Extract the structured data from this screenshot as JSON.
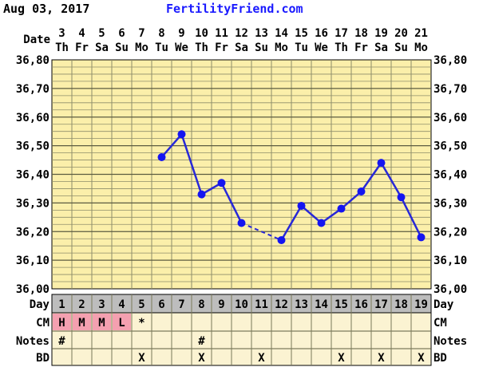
{
  "header": {
    "date": "Aug 03, 2017",
    "site": "FertilityFriend.com"
  },
  "row_labels": {
    "date": "Date",
    "day": "Day",
    "cm": "CM",
    "notes": "Notes",
    "bd": "BD"
  },
  "colors": {
    "chart_bg": "#fbefaa",
    "grid": "#8e8e6a",
    "line": "#2828d8",
    "point": "#1515f0",
    "site_link": "#1a1aff",
    "day_row_bg": "#bdbdbd",
    "cm_fill": "#f4a0b0"
  },
  "chart_data": {
    "type": "line",
    "ylim": [
      36.0,
      36.8
    ],
    "yticks": [
      "36,00",
      "36,10",
      "36,20",
      "36,30",
      "36,40",
      "36,50",
      "36,60",
      "36,70",
      "36,80"
    ],
    "dates": [
      "3",
      "4",
      "5",
      "6",
      "7",
      "8",
      "9",
      "10",
      "11",
      "12",
      "13",
      "14",
      "15",
      "16",
      "17",
      "18",
      "19",
      "20",
      "21"
    ],
    "weekdays": [
      "Th",
      "Fr",
      "Sa",
      "Su",
      "Mo",
      "Tu",
      "We",
      "Th",
      "Fr",
      "Sa",
      "Su",
      "Mo",
      "Tu",
      "We",
      "Th",
      "Fr",
      "Sa",
      "Su",
      "Mo"
    ],
    "cycle_days": [
      "1",
      "2",
      "3",
      "4",
      "5",
      "6",
      "7",
      "8",
      "9",
      "10",
      "11",
      "12",
      "13",
      "14",
      "15",
      "16",
      "17",
      "18",
      "19"
    ],
    "temperatures": [
      null,
      null,
      null,
      null,
      null,
      36.46,
      36.54,
      36.33,
      36.37,
      36.23,
      null,
      36.17,
      36.29,
      36.23,
      36.28,
      36.34,
      36.44,
      36.32,
      36.18
    ],
    "dashed_segments": [
      [
        9,
        11
      ]
    ],
    "cm": [
      "H",
      "M",
      "M",
      "L",
      "*",
      "",
      "",
      "",
      "",
      "",
      "",
      "",
      "",
      "",
      "",
      "",
      "",
      "",
      ""
    ],
    "cm_highlight": [
      true,
      true,
      true,
      true,
      false,
      false,
      false,
      false,
      false,
      false,
      false,
      false,
      false,
      false,
      false,
      false,
      false,
      false,
      false
    ],
    "notes": [
      "#",
      "",
      "",
      "",
      "",
      "",
      "",
      "#",
      "",
      "",
      "",
      "",
      "",
      "",
      "",
      "",
      "",
      "",
      ""
    ],
    "bd": [
      "",
      "",
      "",
      "",
      "X",
      "",
      "",
      "X",
      "",
      "",
      "X",
      "",
      "",
      "",
      "X",
      "",
      "X",
      "",
      "X"
    ]
  }
}
